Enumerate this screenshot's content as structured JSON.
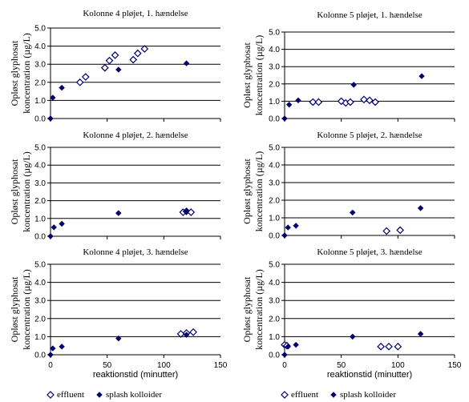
{
  "chart_data": [
    {
      "type": "scatter",
      "title": "Kolonne 4 pløjet, 1. hændelse",
      "ylabel": [
        "Opløst glyphosat",
        "koncentration  (µg/L)"
      ],
      "xlabel": "",
      "xlim": [
        0,
        150
      ],
      "ylim": [
        0,
        5
      ],
      "xticks": [],
      "yticks": [
        "0.0",
        "1.0",
        "2.0",
        "3.0",
        "4.0",
        "5.0"
      ],
      "grid": "horizontal",
      "series": [
        {
          "name": "effluent",
          "marker": "open-diamond",
          "points": [
            [
              26,
              2.0
            ],
            [
              31,
              2.3
            ],
            [
              48,
              2.8
            ],
            [
              52,
              3.2
            ],
            [
              57,
              3.5
            ],
            [
              73,
              3.25
            ],
            [
              77,
              3.6
            ],
            [
              83,
              3.85
            ]
          ]
        },
        {
          "name": "splash kolloider",
          "marker": "filled-diamond",
          "points": [
            [
              0,
              0.0
            ],
            [
              2,
              1.15
            ],
            [
              10,
              1.7
            ],
            [
              60,
              2.7
            ],
            [
              120,
              3.05
            ]
          ]
        }
      ]
    },
    {
      "type": "scatter",
      "title": "Kolonne 5 pløjet, 1. hændelse",
      "ylabel": [
        "Opløst glyphosat",
        "koncentration  (µg/L)"
      ],
      "xlabel": "",
      "xlim": [
        0,
        150
      ],
      "ylim": [
        0,
        5
      ],
      "xticks": [],
      "yticks": [
        "0.0",
        "1.0",
        "2.0",
        "3.0",
        "4.0",
        "5.0"
      ],
      "grid": "horizontal",
      "series": [
        {
          "name": "effluent",
          "marker": "open-diamond",
          "points": [
            [
              25,
              0.95
            ],
            [
              30,
              0.95
            ],
            [
              50,
              1.0
            ],
            [
              54,
              0.9
            ],
            [
              58,
              0.95
            ],
            [
              70,
              1.1
            ],
            [
              75,
              1.05
            ],
            [
              80,
              0.95
            ]
          ]
        },
        {
          "name": "splash kolloider",
          "marker": "filled-diamond",
          "points": [
            [
              0,
              0.0
            ],
            [
              4,
              0.8
            ],
            [
              12,
              1.05
            ],
            [
              61,
              1.95
            ],
            [
              121,
              2.45
            ]
          ]
        }
      ]
    },
    {
      "type": "scatter",
      "title": "Kolonne 4 pløjet, 2. hændelse",
      "ylabel": [
        "Opløst glyphosat",
        "koncentration  (µg/L)"
      ],
      "xlabel": "",
      "xlim": [
        0,
        150
      ],
      "ylim": [
        0,
        5
      ],
      "xticks": [],
      "yticks": [
        "0.0",
        "1.0",
        "2.0",
        "3.0",
        "4.0",
        "5.0"
      ],
      "grid": "horizontal",
      "series": [
        {
          "name": "effluent",
          "marker": "open-diamond",
          "points": [
            [
              117,
              1.35
            ],
            [
              120,
              1.4
            ],
            [
              124,
              1.35
            ]
          ]
        },
        {
          "name": "splash kolloider",
          "marker": "filled-diamond",
          "points": [
            [
              0,
              0.0
            ],
            [
              3,
              0.5
            ],
            [
              10,
              0.7
            ],
            [
              60,
              1.3
            ],
            [
              120,
              1.4
            ]
          ]
        }
      ]
    },
    {
      "type": "scatter",
      "title": "Kolonne 5 pløjet, 2. hændelse",
      "ylabel": [
        "Opløst glyphosat",
        "koncentration  (µg/L)"
      ],
      "xlabel": "",
      "xlim": [
        0,
        150
      ],
      "ylim": [
        0,
        5
      ],
      "xticks": [],
      "yticks": [
        "0.0",
        "1.0",
        "2.0",
        "3.0",
        "4.0",
        "5.0"
      ],
      "grid": "horizontal",
      "series": [
        {
          "name": "effluent",
          "marker": "open-diamond",
          "points": [
            [
              90,
              0.25
            ],
            [
              102,
              0.3
            ]
          ]
        },
        {
          "name": "splash kolloider",
          "marker": "filled-diamond",
          "points": [
            [
              0,
              0.0
            ],
            [
              3,
              0.45
            ],
            [
              10,
              0.55
            ],
            [
              60,
              1.3
            ],
            [
              120,
              1.55
            ]
          ]
        }
      ]
    },
    {
      "type": "scatter",
      "title": "Kolonne 4 pløjet, 3. hændelse",
      "ylabel": [
        "Opløst glyphosat",
        "koncentration  (µg/L)"
      ],
      "xlabel": "reaktionstid (minutter)",
      "xlim": [
        0,
        150
      ],
      "ylim": [
        0,
        5
      ],
      "xticks": [
        "0",
        "50",
        "100",
        "150"
      ],
      "yticks": [
        "0.0",
        "1.0",
        "2.0",
        "3.0",
        "4.0",
        "5.0"
      ],
      "grid": "horizontal",
      "series": [
        {
          "name": "effluent",
          "marker": "open-diamond",
          "points": [
            [
              115,
              1.15
            ],
            [
              120,
              1.2
            ],
            [
              126,
              1.25
            ]
          ]
        },
        {
          "name": "splash kolloider",
          "marker": "filled-diamond",
          "points": [
            [
              0,
              0.0
            ],
            [
              2,
              0.35
            ],
            [
              10,
              0.45
            ],
            [
              60,
              0.9
            ],
            [
              120,
              1.1
            ]
          ]
        }
      ]
    },
    {
      "type": "scatter",
      "title": "Kolonne 5 pløjet, 3. hændelse",
      "ylabel": [
        "Opløst glyphosat",
        "koncentration  (µg/L)"
      ],
      "xlabel": "reaktionstid (minutter)",
      "xlim": [
        0,
        150
      ],
      "ylim": [
        0,
        5
      ],
      "xticks": [
        "0",
        "50",
        "100",
        "150"
      ],
      "yticks": [
        "0.0",
        "1.0",
        "2.0",
        "3.0",
        "4.0",
        "5.0"
      ],
      "grid": "horizontal",
      "series": [
        {
          "name": "effluent",
          "marker": "open-diamond",
          "points": [
            [
              0,
              0.55
            ],
            [
              2,
              0.5
            ],
            [
              85,
              0.45
            ],
            [
              92,
              0.45
            ],
            [
              100,
              0.45
            ]
          ]
        },
        {
          "name": "splash kolloider",
          "marker": "filled-diamond",
          "points": [
            [
              0,
              0.0
            ],
            [
              3,
              0.45
            ],
            [
              10,
              0.55
            ],
            [
              60,
              1.0
            ],
            [
              120,
              1.15
            ]
          ]
        }
      ]
    }
  ],
  "legend": [
    {
      "items": [
        {
          "marker": "open-diamond",
          "label": "effluent"
        },
        {
          "marker": "filled-diamond",
          "label": "splash kolloider"
        }
      ]
    },
    {
      "items": [
        {
          "marker": "open-diamond",
          "label": "effluent"
        },
        {
          "marker": "filled-diamond",
          "label": "splash kolloider"
        }
      ]
    }
  ],
  "colors": {
    "marker_fill": "#00006e",
    "marker_open_fill": "#ffffff",
    "axis": "#000000",
    "grid": "#000000"
  }
}
